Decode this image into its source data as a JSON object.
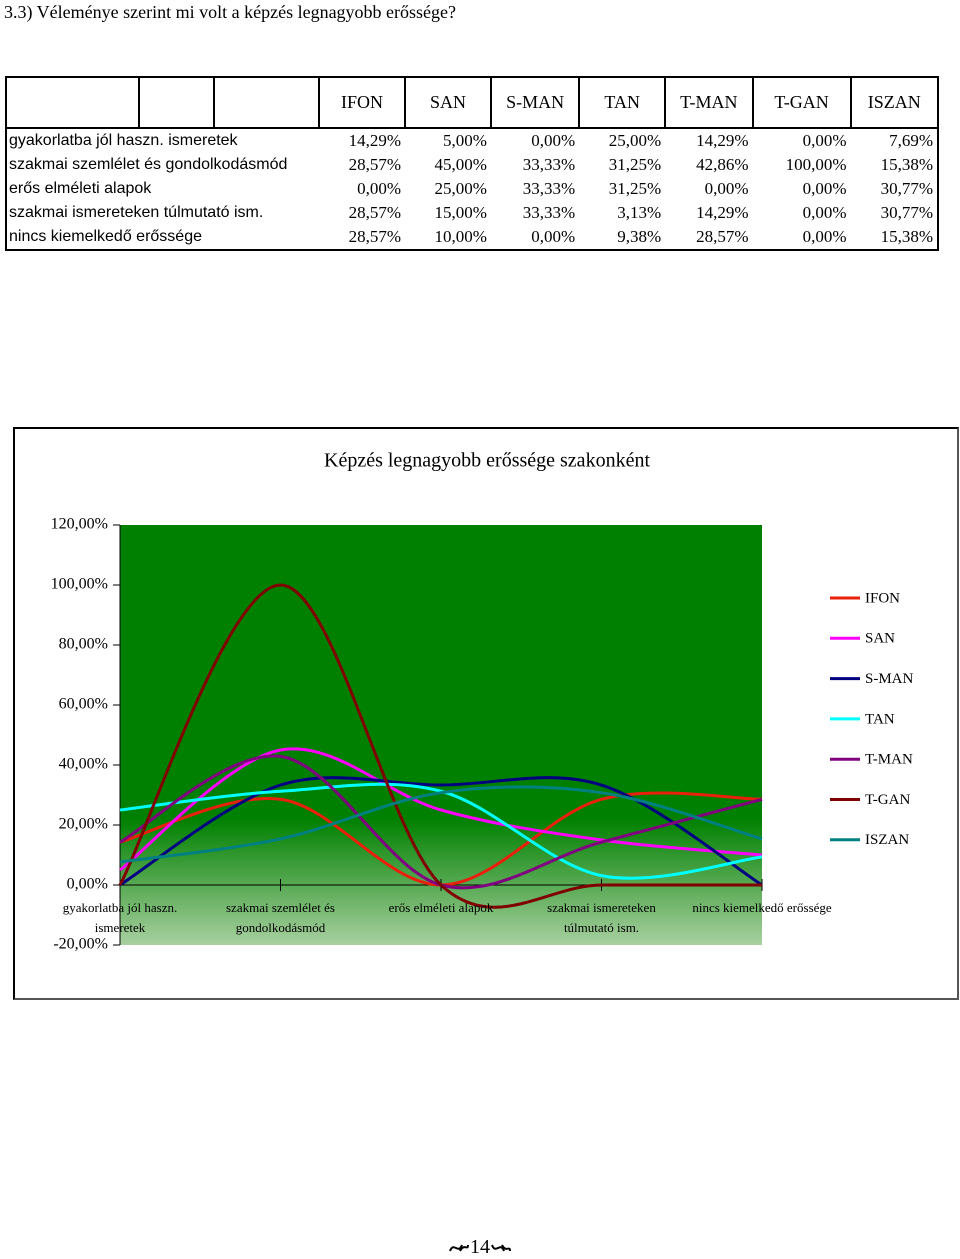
{
  "heading": "3.3) Véleménye szerint mi volt a képzés legnagyobb erőssége?",
  "table": {
    "columns": [
      "IFON",
      "SAN",
      "S-MAN",
      "TAN",
      "T-MAN",
      "T-GAN",
      "ISZAN"
    ],
    "rows": [
      {
        "label": "gyakorlatba jól haszn. ismeretek",
        "values": [
          "14,29%",
          "5,00%",
          "0,00%",
          "25,00%",
          "14,29%",
          "0,00%",
          "7,69%"
        ]
      },
      {
        "label": "szakmai szemlélet és gondolkodásmód",
        "values": [
          "28,57%",
          "45,00%",
          "33,33%",
          "31,25%",
          "42,86%",
          "100,00%",
          "15,38%"
        ]
      },
      {
        "label": "erős elméleti alapok",
        "values": [
          "0,00%",
          "25,00%",
          "33,33%",
          "31,25%",
          "0,00%",
          "0,00%",
          "30,77%"
        ]
      },
      {
        "label": "szakmai ismereteken túlmutató ism.",
        "values": [
          "28,57%",
          "15,00%",
          "33,33%",
          "3,13%",
          "14,29%",
          "0,00%",
          "30,77%"
        ]
      },
      {
        "label": "nincs kiemelkedő erőssége",
        "values": [
          "28,57%",
          "10,00%",
          "0,00%",
          "9,38%",
          "28,57%",
          "0,00%",
          "15,38%"
        ]
      }
    ]
  },
  "chart_data": {
    "type": "line",
    "smooth": true,
    "title": "Képzés legnagyobb erőssége szakonként",
    "categories": [
      "gyakorlatba jól haszn. ismeretek",
      "szakmai szemlélet és gondolkodásmód",
      "erős elméleti alapok",
      "szakmai ismereteken túlmutató ism.",
      "nincs kiemelkedő erőssége"
    ],
    "series": [
      {
        "name": "IFON",
        "color": "#e8200c",
        "values": [
          14.29,
          28.57,
          0,
          28.57,
          28.57
        ]
      },
      {
        "name": "SAN",
        "color": "#ff00ff",
        "values": [
          5,
          45,
          25,
          15,
          10
        ]
      },
      {
        "name": "S-MAN",
        "color": "#000080",
        "values": [
          0,
          33.33,
          33.33,
          33.33,
          0
        ]
      },
      {
        "name": "TAN",
        "color": "#00ffff",
        "values": [
          25,
          31.25,
          31.25,
          3.13,
          9.38
        ]
      },
      {
        "name": "T-MAN",
        "color": "#800080",
        "values": [
          14.29,
          42.86,
          0,
          14.29,
          28.57
        ]
      },
      {
        "name": "T-GAN",
        "color": "#800000",
        "values": [
          0,
          100,
          0,
          0,
          0
        ]
      },
      {
        "name": "ISZAN",
        "color": "#008080",
        "values": [
          7.69,
          15.38,
          30.77,
          30.77,
          15.38
        ]
      }
    ],
    "ylim": [
      -20,
      120
    ],
    "yticks": [
      {
        "value": -20,
        "label": "-20,00%"
      },
      {
        "value": 0,
        "label": "0,00%"
      },
      {
        "value": 20,
        "label": "20,00%"
      },
      {
        "value": 40,
        "label": "40,00%"
      },
      {
        "value": 60,
        "label": "60,00%"
      },
      {
        "value": 80,
        "label": "80,00%"
      },
      {
        "value": 100,
        "label": "100,00%"
      },
      {
        "value": 120,
        "label": "120,00%"
      }
    ],
    "legend": "right"
  },
  "page_number": "14"
}
